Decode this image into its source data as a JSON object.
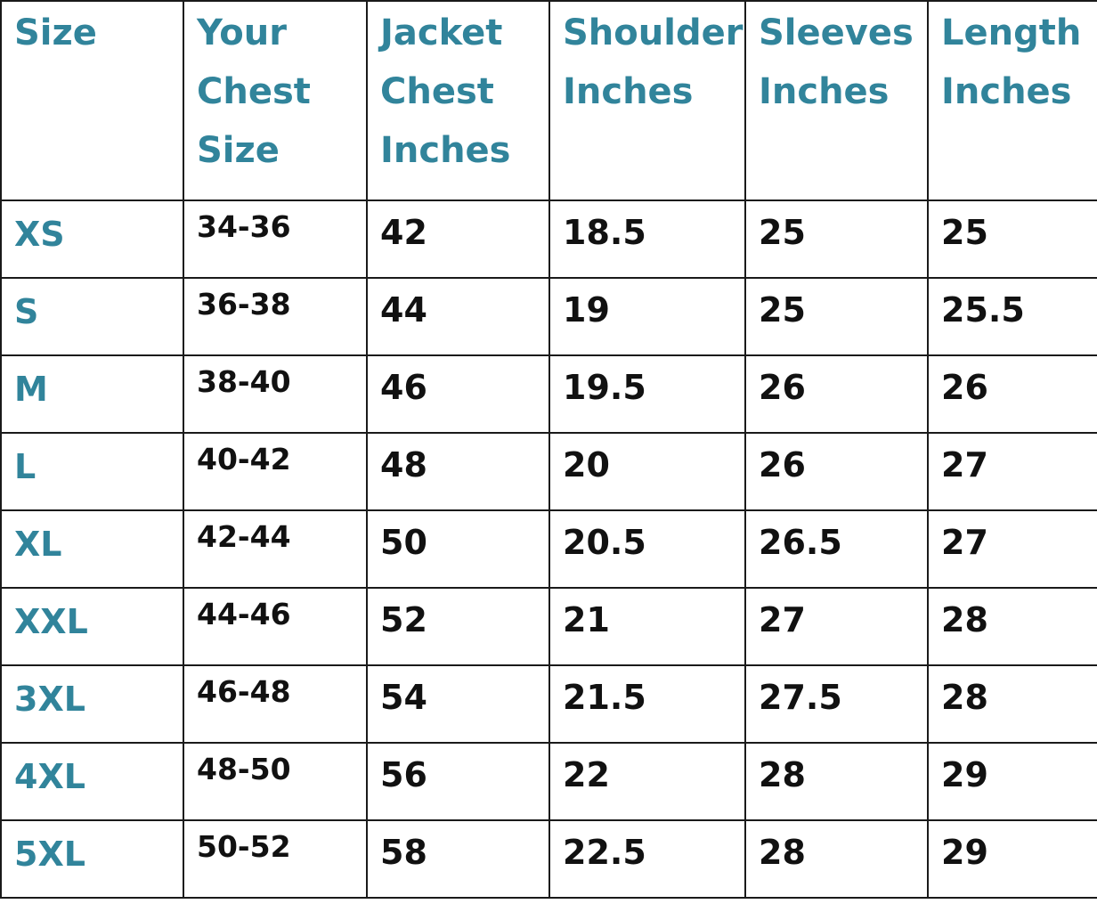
{
  "colors": {
    "header_text": "#31849b",
    "size_text": "#31849b",
    "body_text": "#111111",
    "border": "#1a1a1a"
  },
  "headers": [
    [
      "Size"
    ],
    [
      "Your",
      "Chest",
      "Size"
    ],
    [
      "Jacket",
      "Chest",
      "Inches"
    ],
    [
      "Shoulder",
      "Inches"
    ],
    [
      "Sleeves",
      "Inches"
    ],
    [
      "Length",
      "Inches"
    ]
  ],
  "rows": [
    [
      "XS",
      "34-36",
      "42",
      "18.5",
      "25",
      "25"
    ],
    [
      "S",
      "36-38",
      "44",
      "19",
      "25",
      "25.5"
    ],
    [
      "M",
      "38-40",
      "46",
      "19.5",
      "26",
      "26"
    ],
    [
      "L",
      "40-42",
      "48",
      "20",
      "26",
      "27"
    ],
    [
      "XL",
      "42-44",
      "50",
      "20.5",
      "26.5",
      "27"
    ],
    [
      "XXL",
      "44-46",
      "52",
      "21",
      "27",
      "28"
    ],
    [
      "3XL",
      "46-48",
      "54",
      "21.5",
      "27.5",
      "28"
    ],
    [
      "4XL",
      "48-50",
      "56",
      "22",
      "28",
      "29"
    ],
    [
      "5XL",
      "50-52",
      "58",
      "22.5",
      "28",
      "29"
    ]
  ]
}
